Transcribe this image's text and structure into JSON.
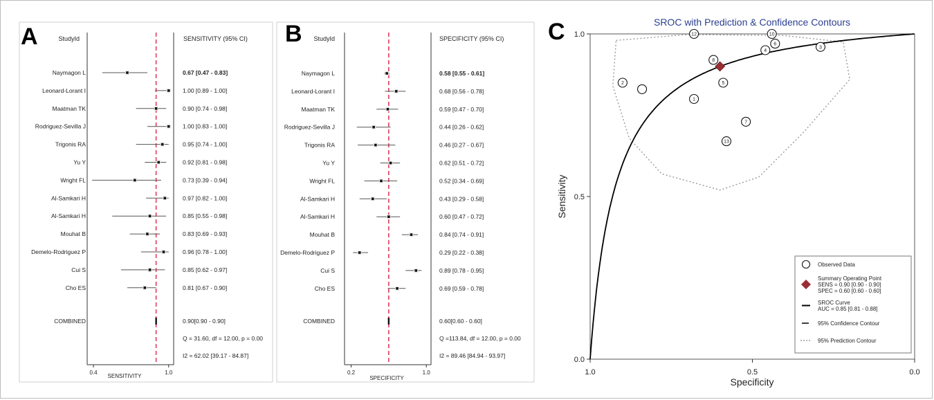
{
  "chart_data": [
    {
      "panel": "A",
      "type": "forest",
      "col_left_header": "StudyId",
      "col_right_header": "SENSITIVITY (95% CI)",
      "xlabel": "SENSITIVITY",
      "xticks": [
        0.4,
        1.0
      ],
      "xtick_labels": [
        "0.4",
        "1.0"
      ],
      "xlim": [
        0.35,
        1.04
      ],
      "pooled_estimate": 0.9,
      "studies": [
        {
          "name": "Naymagon L",
          "est": 0.67,
          "lo": 0.47,
          "hi": 0.83,
          "label": "0.67 [0.47 - 0.83]",
          "bold": true
        },
        {
          "name": "Leonard-Lorant I",
          "est": 1.0,
          "lo": 0.89,
          "hi": 1.0,
          "label": "1.00 [0.89 - 1.00]"
        },
        {
          "name": "Maatman TK",
          "est": 0.9,
          "lo": 0.74,
          "hi": 0.98,
          "label": "0.90 [0.74 - 0.98]"
        },
        {
          "name": "Rodriguez-Sevilla J",
          "est": 1.0,
          "lo": 0.83,
          "hi": 1.0,
          "label": "1.00 [0.83 - 1.00]"
        },
        {
          "name": "Trigonis RA",
          "est": 0.95,
          "lo": 0.74,
          "hi": 1.0,
          "label": "0.95 [0.74 - 1.00]"
        },
        {
          "name": "Yu Y",
          "est": 0.92,
          "lo": 0.81,
          "hi": 0.98,
          "label": "0.92 [0.81 - 0.98]"
        },
        {
          "name": "Wright FL",
          "est": 0.73,
          "lo": 0.39,
          "hi": 0.94,
          "label": "0.73 [0.39 - 0.94]"
        },
        {
          "name": "Al-Samkari H",
          "est": 0.97,
          "lo": 0.82,
          "hi": 1.0,
          "label": "0.97 [0.82 - 1.00]"
        },
        {
          "name": "Al-Samkari H",
          "est": 0.85,
          "lo": 0.55,
          "hi": 0.98,
          "label": "0.85 [0.55 - 0.98]"
        },
        {
          "name": "Mouhat B",
          "est": 0.83,
          "lo": 0.69,
          "hi": 0.93,
          "label": "0.83 [0.69 - 0.93]"
        },
        {
          "name": "Demelo-Rodriguez P",
          "est": 0.96,
          "lo": 0.78,
          "hi": 1.0,
          "label": "0.96 [0.78 - 1.00]"
        },
        {
          "name": "Cui S",
          "est": 0.85,
          "lo": 0.62,
          "hi": 0.97,
          "label": "0.85 [0.62 - 0.97]"
        },
        {
          "name": "Cho ES",
          "est": 0.81,
          "lo": 0.67,
          "hi": 0.9,
          "label": "0.81 [0.67 - 0.90]"
        }
      ],
      "combined": {
        "name": "COMBINED",
        "est": 0.9,
        "lo": 0.9,
        "hi": 0.9,
        "label": "0.90[0.90 - 0.90]"
      },
      "stats": [
        "Q = 31.60, df = 12.00, p =  0.00",
        "I2 = 62.02 [39.17 - 84.87]"
      ],
      "colors": {
        "ref_line": "#e03c5e",
        "ci": "#555555",
        "point": "#111111"
      }
    },
    {
      "panel": "B",
      "type": "forest",
      "col_left_header": "StudyId",
      "col_right_header": "SPECIFICITY (95% CI)",
      "xlabel": "SPECIFICITY",
      "xticks": [
        0.2,
        1.0
      ],
      "xtick_labels": [
        "0.2",
        "1.0"
      ],
      "xlim": [
        0.13,
        1.05
      ],
      "pooled_estimate": 0.6,
      "studies": [
        {
          "name": "Naymagon L",
          "est": 0.58,
          "lo": 0.55,
          "hi": 0.61,
          "label": "0.58 [0.55 - 0.61]",
          "bold": true
        },
        {
          "name": "Leonard-Lorant I",
          "est": 0.68,
          "lo": 0.56,
          "hi": 0.78,
          "label": "0.68 [0.56 - 0.78]"
        },
        {
          "name": "Maatman TK",
          "est": 0.59,
          "lo": 0.47,
          "hi": 0.7,
          "label": "0.59 [0.47 - 0.70]"
        },
        {
          "name": "Rodriguez-Sevilla J",
          "est": 0.44,
          "lo": 0.26,
          "hi": 0.62,
          "label": "0.44 [0.26 - 0.62]"
        },
        {
          "name": "Trigonis RA",
          "est": 0.46,
          "lo": 0.27,
          "hi": 0.67,
          "label": "0.46 [0.27 - 0.67]"
        },
        {
          "name": "Yu Y",
          "est": 0.62,
          "lo": 0.51,
          "hi": 0.72,
          "label": "0.62 [0.51 - 0.72]"
        },
        {
          "name": "Wright FL",
          "est": 0.52,
          "lo": 0.34,
          "hi": 0.69,
          "label": "0.52 [0.34 - 0.69]"
        },
        {
          "name": "Al-Samkari H",
          "est": 0.43,
          "lo": 0.29,
          "hi": 0.58,
          "label": "0.43 [0.29 - 0.58]"
        },
        {
          "name": "Al-Samkari H",
          "est": 0.6,
          "lo": 0.47,
          "hi": 0.72,
          "label": "0.60 [0.47 - 0.72]"
        },
        {
          "name": "Mouhat B",
          "est": 0.84,
          "lo": 0.74,
          "hi": 0.91,
          "label": "0.84 [0.74 - 0.91]"
        },
        {
          "name": "Demelo-Rodriguez P",
          "est": 0.29,
          "lo": 0.22,
          "hi": 0.38,
          "label": "0.29 [0.22 - 0.38]"
        },
        {
          "name": "Cui S",
          "est": 0.89,
          "lo": 0.78,
          "hi": 0.95,
          "label": "0.89 [0.78 - 0.95]"
        },
        {
          "name": "Cho ES",
          "est": 0.69,
          "lo": 0.59,
          "hi": 0.78,
          "label": "0.69 [0.59 - 0.78]"
        }
      ],
      "combined": {
        "name": "COMBINED",
        "est": 0.6,
        "lo": 0.6,
        "hi": 0.6,
        "label": "0.60[0.60 - 0.60]"
      },
      "stats": [
        "Q =113.84, df = 12.00, p =  0.00",
        "I2 = 89.46 [84.94 - 93.97]"
      ],
      "colors": {
        "ref_line": "#e03c5e",
        "ci": "#555555",
        "point": "#111111"
      }
    },
    {
      "panel": "C",
      "type": "scatter",
      "title": "SROC with Prediction & Confidence Contours",
      "xlabel": "Specificity",
      "ylabel": "Sensitivity",
      "x_reversed": true,
      "xlim": [
        1.0,
        0.0
      ],
      "ylim": [
        0.0,
        1.0
      ],
      "xticks": [
        1.0,
        0.5,
        0.0
      ],
      "xtick_labels": [
        "1.0",
        "0.5",
        "0.0"
      ],
      "yticks": [
        0.0,
        0.5,
        1.0
      ],
      "ytick_labels": [
        "0.0",
        "0.5",
        "1.0"
      ],
      "observed": [
        {
          "id": "1",
          "spec": 0.68,
          "sens": 0.8
        },
        {
          "id": "2",
          "spec": 0.9,
          "sens": 0.85
        },
        {
          "id": "3",
          "spec": 0.29,
          "sens": 0.96
        },
        {
          "id": "4",
          "spec": 0.46,
          "sens": 0.95
        },
        {
          "id": "5",
          "spec": 0.59,
          "sens": 0.85
        },
        {
          "id": "6",
          "spec": 0.43,
          "sens": 0.97
        },
        {
          "id": "7",
          "spec": 0.52,
          "sens": 0.73
        },
        {
          "id": "8",
          "spec": 0.62,
          "sens": 0.92
        },
        {
          "id": "10",
          "spec": 0.44,
          "sens": 1.0
        },
        {
          "id": "12",
          "spec": 0.68,
          "sens": 1.0
        },
        {
          "id": "13",
          "spec": 0.58,
          "sens": 0.67
        },
        {
          "id": "",
          "spec": 0.84,
          "sens": 0.83
        }
      ],
      "summary_point": {
        "spec": 0.6,
        "sens": 0.9
      },
      "sroc_auc": 0.85,
      "legend": {
        "position": "bottom-right",
        "items": [
          {
            "symbol": "circle",
            "lines": [
              "Observed Data"
            ]
          },
          {
            "symbol": "diamond",
            "lines": [
              "Summary Operating Point",
              "SENS = 0.90 [0.90 - 0.90]",
              "SPEC = 0.60 [0.60 - 0.60]"
            ]
          },
          {
            "symbol": "solid",
            "lines": [
              "SROC Curve",
              "AUC = 0.85 [0.81 - 0.88]"
            ]
          },
          {
            "symbol": "dash",
            "lines": [
              "95% Confidence Contour"
            ]
          },
          {
            "symbol": "dotted",
            "lines": [
              "95% Prediction Contour"
            ]
          }
        ]
      },
      "colors": {
        "title": "#2a3f8f",
        "summary": "#9b2d35",
        "prediction_contour": "#9a9a9a",
        "curve": "#000000"
      }
    }
  ]
}
